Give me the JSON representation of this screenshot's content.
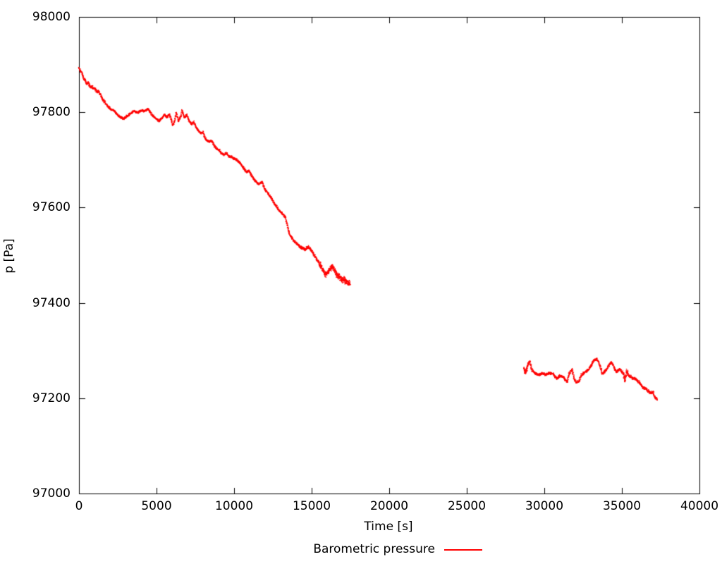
{
  "chart_data": {
    "type": "scatter",
    "title": "",
    "xlabel": "Time [s]",
    "ylabel": "p [Pa]",
    "xlim": [
      0,
      40000
    ],
    "ylim": [
      97000,
      98000
    ],
    "grid": false,
    "legend_position": "below-center",
    "background": "#ffffff",
    "axis_color": "#000000",
    "x_ticks": [
      0,
      5000,
      10000,
      15000,
      20000,
      25000,
      30000,
      35000,
      40000
    ],
    "x_tick_labels": [
      "0",
      "5000",
      "10000",
      "15000",
      "20000",
      "25000",
      "30000",
      "35000",
      "40000"
    ],
    "y_ticks": [
      97000,
      97200,
      97400,
      97600,
      97800,
      98000
    ],
    "y_tick_labels": [
      "97000",
      "97200",
      "97400",
      "97600",
      "97800",
      "98000"
    ],
    "legend": {
      "label": "Barometric pressure"
    },
    "series": [
      {
        "name": "Barometric pressure",
        "color": "#ff0000",
        "style": "dots",
        "segments": [
          {
            "points": [
              [
                0,
                97893
              ],
              [
                150,
                97884
              ],
              [
                240,
                97878
              ],
              [
                300,
                97871
              ],
              [
                420,
                97866
              ],
              [
                510,
                97860
              ],
              [
                600,
                97863
              ],
              [
                690,
                97855
              ],
              [
                760,
                97852
              ],
              [
                830,
                97855
              ],
              [
                920,
                97849
              ],
              [
                1000,
                97851
              ],
              [
                1100,
                97846
              ],
              [
                1180,
                97842
              ],
              [
                1280,
                97845
              ],
              [
                1380,
                97836
              ],
              [
                1500,
                97829
              ],
              [
                1640,
                97822
              ],
              [
                1820,
                97814
              ],
              [
                1960,
                97809
              ],
              [
                2100,
                97805
              ],
              [
                2280,
                97803
              ],
              [
                2420,
                97797
              ],
              [
                2560,
                97792
              ],
              [
                2730,
                97789
              ],
              [
                2870,
                97786
              ],
              [
                3100,
                97792
              ],
              [
                3320,
                97797
              ],
              [
                3550,
                97803
              ],
              [
                3780,
                97799
              ],
              [
                4010,
                97804
              ],
              [
                4230,
                97802
              ],
              [
                4450,
                97807
              ],
              [
                4600,
                97800
              ],
              [
                4780,
                97792
              ],
              [
                5000,
                97786
              ],
              [
                5140,
                97781
              ],
              [
                5360,
                97788
              ],
              [
                5500,
                97795
              ],
              [
                5680,
                97789
              ],
              [
                5820,
                97796
              ],
              [
                5950,
                97785
              ],
              [
                6050,
                97774
              ],
              [
                6180,
                97782
              ],
              [
                6270,
                97799
              ],
              [
                6400,
                97781
              ],
              [
                6590,
                97793
              ],
              [
                6640,
                97804
              ],
              [
                6820,
                97788
              ],
              [
                6950,
                97795
              ],
              [
                7090,
                97782
              ],
              [
                7270,
                97775
              ],
              [
                7410,
                97780
              ],
              [
                7550,
                97768
              ],
              [
                7730,
                97760
              ],
              [
                7860,
                97756
              ],
              [
                8000,
                97758
              ],
              [
                8090,
                97748
              ],
              [
                8230,
                97741
              ],
              [
                8410,
                97738
              ],
              [
                8550,
                97740
              ],
              [
                8730,
                97729
              ],
              [
                8910,
                97723
              ],
              [
                9050,
                97720
              ],
              [
                9180,
                97714
              ],
              [
                9360,
                97710
              ],
              [
                9500,
                97715
              ],
              [
                9640,
                97708
              ],
              [
                9820,
                97706
              ],
              [
                10130,
                97701
              ],
              [
                10360,
                97695
              ],
              [
                10590,
                97684
              ],
              [
                10810,
                97674
              ],
              [
                10950,
                97678
              ],
              [
                11130,
                97667
              ],
              [
                11360,
                97656
              ],
              [
                11580,
                97649
              ],
              [
                11810,
                97654
              ],
              [
                11950,
                97641
              ],
              [
                12170,
                97630
              ],
              [
                12400,
                97620
              ],
              [
                12630,
                97607
              ],
              [
                12860,
                97596
              ],
              [
                13080,
                97588
              ],
              [
                13300,
                97580
              ],
              [
                13400,
                97566
              ],
              [
                13540,
                97548
              ],
              [
                13670,
                97539
              ],
              [
                13900,
                97529
              ],
              [
                14120,
                97522
              ],
              [
                14350,
                97516
              ],
              [
                14580,
                97512
              ],
              [
                14800,
                97518
              ],
              [
                15030,
                97507
              ],
              [
                15260,
                97496
              ],
              [
                15490,
                97483
              ],
              [
                15710,
                97470
              ],
              [
                15890,
                97459
              ],
              [
                16030,
                97463
              ],
              [
                16170,
                97470
              ],
              [
                16350,
                97476
              ],
              [
                16490,
                97469
              ],
              [
                16620,
                97459
              ],
              [
                16800,
                97454
              ],
              [
                16940,
                97449
              ],
              [
                17080,
                97448
              ],
              [
                17260,
                97444
              ],
              [
                17400,
                97441
              ],
              [
                17480,
                97439
              ]
            ],
            "noise_pa": [
              [
                0,
                1500,
                3
              ],
              [
                1500,
                12000,
                2.6
              ],
              [
                12000,
                13300,
                3
              ],
              [
                13300,
                14200,
                3.5
              ],
              [
                14200,
                15500,
                4
              ],
              [
                15500,
                16400,
                6
              ],
              [
                16400,
                17480,
                8
              ]
            ]
          },
          {
            "points": [
              [
                28690,
                97264
              ],
              [
                28740,
                97255
              ],
              [
                28830,
                97258
              ],
              [
                28970,
                97272
              ],
              [
                29060,
                97277
              ],
              [
                29200,
                97259
              ],
              [
                29420,
                97252
              ],
              [
                29650,
                97249
              ],
              [
                29880,
                97252
              ],
              [
                30110,
                97249
              ],
              [
                30330,
                97253
              ],
              [
                30560,
                97251
              ],
              [
                30790,
                97241
              ],
              [
                31010,
                97247
              ],
              [
                31240,
                97244
              ],
              [
                31470,
                97234
              ],
              [
                31600,
                97251
              ],
              [
                31790,
                97261
              ],
              [
                31920,
                97240
              ],
              [
                32060,
                97233
              ],
              [
                32240,
                97235
              ],
              [
                32380,
                97248
              ],
              [
                32600,
                97254
              ],
              [
                32830,
                97259
              ],
              [
                33060,
                97270
              ],
              [
                33190,
                97280
              ],
              [
                33370,
                97282
              ],
              [
                33510,
                97276
              ],
              [
                33650,
                97262
              ],
              [
                33740,
                97252
              ],
              [
                33870,
                97256
              ],
              [
                34050,
                97262
              ],
              [
                34190,
                97271
              ],
              [
                34330,
                97276
              ],
              [
                34510,
                97264
              ],
              [
                34650,
                97255
              ],
              [
                34870,
                97261
              ],
              [
                35100,
                97251
              ],
              [
                35190,
                97236
              ],
              [
                35330,
                97257
              ],
              [
                35460,
                97247
              ],
              [
                35690,
                97242
              ],
              [
                35920,
                97240
              ],
              [
                36140,
                97232
              ],
              [
                36370,
                97222
              ],
              [
                36600,
                97219
              ],
              [
                36820,
                97211
              ],
              [
                37010,
                97213
              ],
              [
                37140,
                97201
              ],
              [
                37276,
                97198
              ]
            ],
            "noise_pa": [
              [
                28690,
                28900,
                6
              ],
              [
                28900,
                35050,
                3
              ],
              [
                35050,
                35350,
                6
              ],
              [
                35350,
                37276,
                3.2
              ]
            ]
          }
        ]
      }
    ]
  }
}
